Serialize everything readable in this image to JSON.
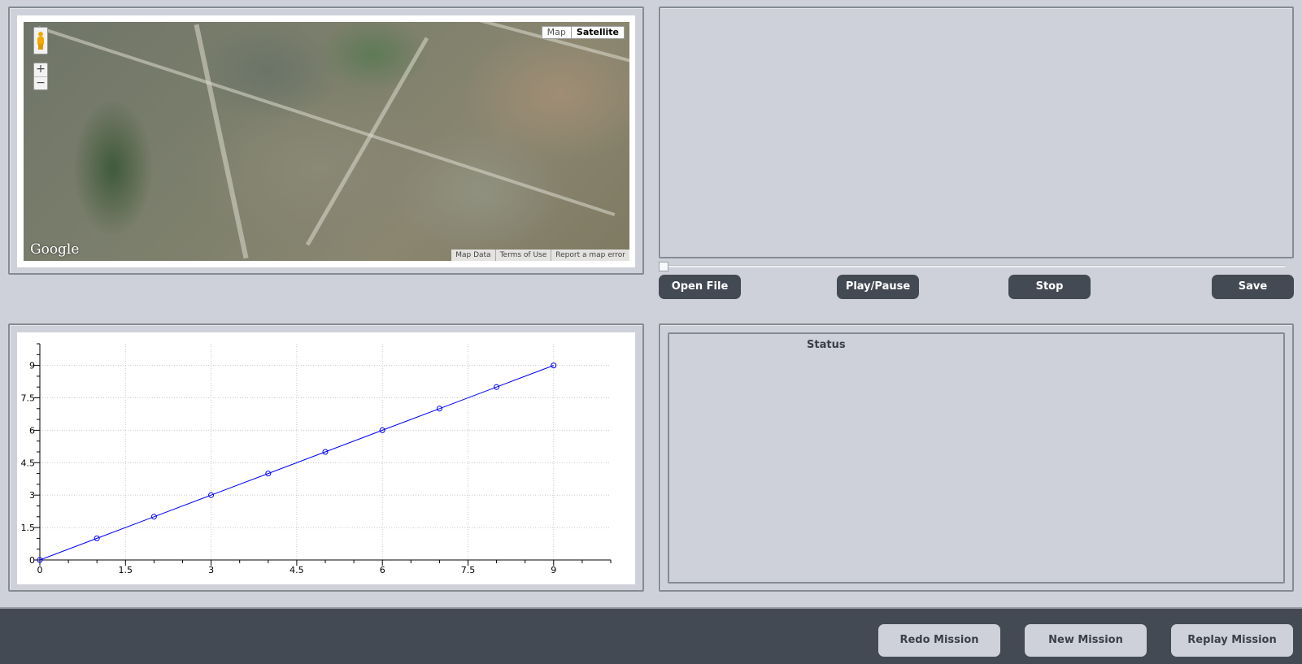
{
  "map": {
    "type_map": "Map",
    "type_satellite": "Satellite",
    "active_type": "Satellite",
    "zoom_in": "+",
    "zoom_out": "−",
    "logo": "Google",
    "attribution": [
      "Map Data",
      "Terms of Use",
      "Report a map error"
    ]
  },
  "video": {
    "seek_position": 0
  },
  "controls": {
    "open_file": "Open File",
    "play_pause": "Play/Pause",
    "stop": "Stop",
    "save": "Save"
  },
  "status": {
    "title": "Status"
  },
  "mission": {
    "redo": "Redo Mission",
    "new": "New Mission",
    "replay": "Replay Mission"
  },
  "colors": {
    "series": "#0000ff",
    "button_dark": "#434a53",
    "background": "#ced1da"
  },
  "chart_data": {
    "type": "line",
    "title": "",
    "xlabel": "",
    "ylabel": "",
    "xlim": [
      0,
      10
    ],
    "ylim": [
      0,
      10
    ],
    "x_ticks": [
      0,
      1.5,
      3,
      4.5,
      6,
      7.5,
      9
    ],
    "y_ticks": [
      0,
      1.5,
      3,
      4.5,
      6,
      7.5,
      9
    ],
    "x_tick_labels": [
      "0",
      "1.5",
      "3",
      "4.5",
      "6",
      "7.5",
      "9"
    ],
    "y_tick_labels": [
      "0",
      "1.5",
      "3",
      "4.5",
      "6",
      "7.5",
      "9"
    ],
    "grid": true,
    "series": [
      {
        "x": [
          0,
          1,
          2,
          3,
          4,
          5,
          6,
          7,
          8,
          9
        ],
        "y": [
          0,
          1,
          2,
          3,
          4,
          5,
          6,
          7,
          8,
          9
        ],
        "markers": "circle"
      }
    ]
  }
}
